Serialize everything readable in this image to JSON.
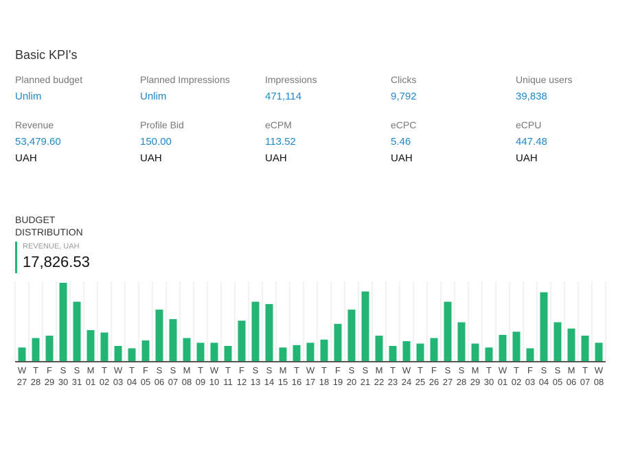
{
  "header": {
    "title": "Basic KPI's"
  },
  "kpis_row1": [
    {
      "label": "Planned budget",
      "value": "Unlim"
    },
    {
      "label": "Planned Impressions",
      "value": "Unlim"
    },
    {
      "label": "Impressions",
      "value": "471,114"
    },
    {
      "label": "Clicks",
      "value": "9,792"
    },
    {
      "label": "Unique users",
      "value": "39,838"
    }
  ],
  "kpis_row2": [
    {
      "label": "Revenue",
      "value": "53,479.60",
      "unit": "UAH"
    },
    {
      "label": "Profile Bid",
      "value": "150.00",
      "unit": "UAH"
    },
    {
      "label": "eCPM",
      "value": "113.52",
      "unit": "UAH"
    },
    {
      "label": "eCPC",
      "value": "5.46",
      "unit": "UAH"
    },
    {
      "label": "eCPU",
      "value": "447.48",
      "unit": "UAH"
    }
  ],
  "budget": {
    "section_title": "BUDGET DISTRIBUTION",
    "revenue_label": "REVENUE, UAH",
    "revenue_value": "17,826.53"
  },
  "colors": {
    "bar": "#22b573",
    "value_text": "#1e88c9",
    "grid": "#e5e5e5",
    "axis": "#555555"
  },
  "chart_data": {
    "type": "bar",
    "weekdays": [
      "W",
      "T",
      "F",
      "S",
      "S",
      "M",
      "T",
      "W",
      "T",
      "F",
      "S",
      "S",
      "M",
      "T",
      "W",
      "T",
      "F",
      "S",
      "S",
      "M",
      "T",
      "W",
      "T",
      "F",
      "S",
      "S",
      "M",
      "T",
      "W",
      "T",
      "F",
      "S",
      "S",
      "M",
      "T",
      "W",
      "T",
      "F",
      "S",
      "S",
      "M",
      "T",
      "W"
    ],
    "days": [
      "27",
      "28",
      "29",
      "30",
      "31",
      "01",
      "02",
      "03",
      "04",
      "05",
      "06",
      "07",
      "08",
      "09",
      "10",
      "11",
      "12",
      "13",
      "14",
      "15",
      "16",
      "17",
      "18",
      "19",
      "20",
      "21",
      "22",
      "23",
      "24",
      "25",
      "26",
      "27",
      "28",
      "29",
      "30",
      "01",
      "02",
      "03",
      "04",
      "05",
      "06",
      "07",
      "08"
    ],
    "values": [
      18,
      30,
      33,
      100,
      76,
      40,
      37,
      20,
      17,
      27,
      66,
      54,
      30,
      24,
      24,
      20,
      52,
      76,
      73,
      18,
      21,
      24,
      28,
      48,
      66,
      89,
      33,
      20,
      26,
      23,
      30,
      76,
      50,
      23,
      18,
      34,
      38,
      17,
      88,
      50,
      42,
      33,
      24
    ],
    "ylim": [
      0,
      100
    ],
    "grid": true
  }
}
